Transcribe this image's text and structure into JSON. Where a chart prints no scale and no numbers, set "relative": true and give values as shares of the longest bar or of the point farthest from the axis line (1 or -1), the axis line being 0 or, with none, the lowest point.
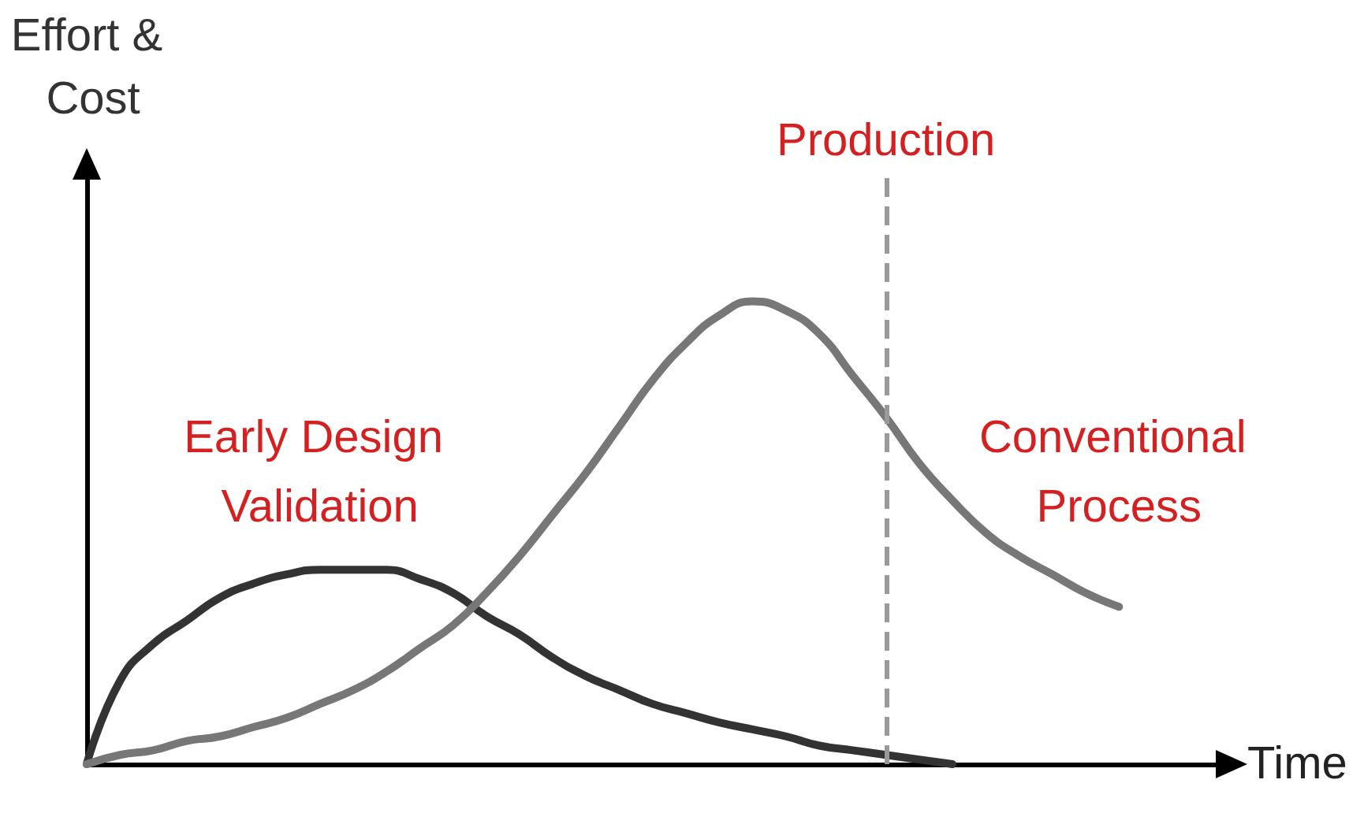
{
  "chart_data": {
    "type": "line",
    "relative": true,
    "xlabel": "Time",
    "ylabel": "Effort & Cost",
    "annotations": [
      "Production"
    ],
    "legend": false,
    "grid": false,
    "marker": "none",
    "line_style": "solid",
    "categories": [
      null,
      null,
      null,
      null,
      null,
      null,
      null,
      null,
      null,
      null,
      null,
      null,
      null,
      null,
      null,
      null,
      null,
      null,
      null,
      null,
      null,
      null,
      null,
      null,
      null,
      null,
      null,
      null,
      null,
      null,
      null,
      null,
      null,
      null,
      null
    ],
    "series": [
      {
        "name": "Early Design Validation",
        "color": "#333333",
        "values": [
          0,
          0.18,
          0.26,
          0.31,
          0.36,
          0.39,
          0.41,
          0.42,
          0.42,
          0.42,
          0.4,
          0.37,
          0.32,
          0.28,
          0.23,
          0.19,
          0.16,
          0.13,
          0.11,
          0.09,
          0.075,
          0.06,
          0.04,
          0.03,
          0.02,
          0.01,
          0,
          null,
          null,
          null,
          null,
          null,
          null,
          null,
          null
        ]
      },
      {
        "name": "Conventional Process",
        "color": "#777777",
        "values": [
          0,
          0.02,
          0.03,
          0.05,
          0.06,
          0.08,
          0.1,
          0.13,
          0.16,
          0.2,
          0.25,
          0.3,
          0.37,
          0.45,
          0.54,
          0.63,
          0.73,
          0.83,
          0.91,
          0.97,
          1,
          0.98,
          0.93,
          0.84,
          0.75,
          0.65,
          0.57,
          0.5,
          0.45,
          0.41,
          0.37,
          0.34,
          null,
          null,
          null
        ]
      }
    ]
  }
}
